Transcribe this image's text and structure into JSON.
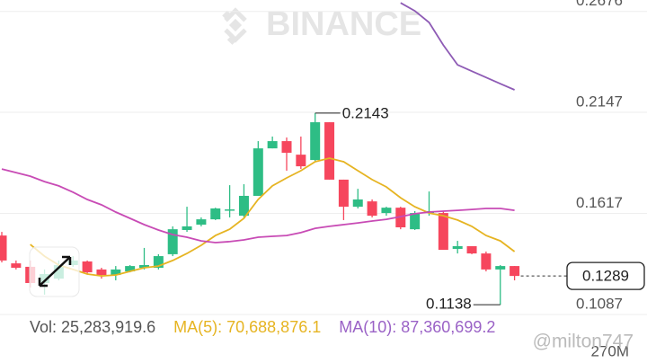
{
  "chart_data": {
    "type": "candlestick",
    "watermark": "BINANCE",
    "credit": "@milton747",
    "ylim": [
      0.1087,
      0.2736
    ],
    "yticks": [
      0.2676,
      0.2147,
      0.1617,
      0.1087
    ],
    "grid": true,
    "up_color": "#2ebd85",
    "down_color": "#f6465d",
    "open": [
      0.1501,
      0.1355,
      0.1337,
      0.1252,
      0.1275,
      0.1346,
      0.1365,
      0.1323,
      0.1294,
      0.1313,
      0.1332,
      0.1332,
      0.1403,
      0.153,
      0.1558,
      0.1586,
      0.1633,
      0.1605,
      0.1709,
      0.1958,
      0.1996,
      0.1925,
      0.1897,
      0.2095,
      0.1794,
      0.1652,
      0.168,
      0.1619,
      0.1647,
      0.1534,
      0.1619,
      0.1619,
      0.1431,
      0.1445,
      0.1407,
      0.1323,
      0.1341
    ],
    "high": [
      0.152,
      0.137,
      0.137,
      0.1323,
      0.137,
      0.1393,
      0.137,
      0.1332,
      0.1341,
      0.1346,
      0.1436,
      0.1403,
      0.1549,
      0.1652,
      0.1596,
      0.1647,
      0.1765,
      0.177,
      0.1996,
      0.202,
      0.2015,
      0.202,
      0.2143,
      0.2095,
      0.1794,
      0.1746,
      0.169,
      0.1652,
      0.1652,
      0.1629,
      0.1732,
      0.1629,
      0.1473,
      0.1445,
      0.1417,
      0.1346,
      0.1341
    ],
    "low": [
      0.136,
      0.1323,
      0.1228,
      0.1191,
      0.1266,
      0.1337,
      0.1299,
      0.1275,
      0.1266,
      0.1308,
      0.1323,
      0.1323,
      0.1393,
      0.152,
      0.1549,
      0.1582,
      0.1596,
      0.1596,
      0.1709,
      0.1958,
      0.1841,
      0.185,
      0.1888,
      0.1794,
      0.1582,
      0.1643,
      0.1596,
      0.1605,
      0.1534,
      0.153,
      0.1605,
      0.1426,
      0.1407,
      0.1403,
      0.1313,
      0.1138,
      0.1266
    ],
    "close": [
      0.137,
      0.1332,
      0.1252,
      0.1299,
      0.1346,
      0.137,
      0.1308,
      0.1294,
      0.1323,
      0.1341,
      0.1346,
      0.1393,
      0.1534,
      0.1549,
      0.1586,
      0.1643,
      0.1638,
      0.1709,
      0.1958,
      0.1996,
      0.1935,
      0.1864,
      0.2095,
      0.1794,
      0.1652,
      0.169,
      0.1605,
      0.1647,
      0.1544,
      0.1619,
      0.1629,
      0.1426,
      0.1445,
      0.1407,
      0.1323,
      0.1341,
      0.1289
    ],
    "series": [
      {
        "color": "#e6b422",
        "values": [
          null,
          null,
          0.1454,
          0.1393,
          0.1346,
          0.1323,
          0.1299,
          0.1289,
          0.1294,
          0.1313,
          0.1332,
          0.1341,
          0.137,
          0.1407,
          0.145,
          0.1501,
          0.1534,
          0.1591,
          0.169,
          0.1761,
          0.1803,
          0.1841,
          0.1888,
          0.1907,
          0.1888,
          0.1841,
          0.1794,
          0.1756,
          0.1699,
          0.1652,
          0.1619,
          0.1605,
          0.1582,
          0.1549,
          0.1501,
          0.1473,
          0.1417
        ]
      },
      {
        "color": "#c84bb5",
        "values": [
          0.185,
          0.1831,
          0.1812,
          0.1784,
          0.1761,
          0.1728,
          0.169,
          0.1662,
          0.1624,
          0.1591,
          0.1558,
          0.153,
          0.1506,
          0.1492,
          0.1473,
          0.1464,
          0.1469,
          0.1478,
          0.1492,
          0.1497,
          0.1501,
          0.1516,
          0.1539,
          0.1549,
          0.1558,
          0.1567,
          0.1577,
          0.1586,
          0.16,
          0.1615,
          0.1624,
          0.1629,
          0.1633,
          0.1638,
          0.1643,
          0.1643,
          0.1633
        ]
      },
      {
        "color": "#8e5bb5",
        "values": [
          null,
          null,
          null,
          null,
          null,
          null,
          null,
          null,
          null,
          null,
          null,
          null,
          null,
          null,
          null,
          null,
          null,
          null,
          null,
          null,
          null,
          null,
          null,
          null,
          null,
          null,
          null,
          null,
          0.2721,
          0.2679,
          0.2618,
          0.25,
          0.2396,
          0.2363,
          0.233,
          0.2297,
          0.2265
        ]
      }
    ],
    "volume_legend": [
      {
        "text": "Vol: 25,283,919.6",
        "color": "#555555"
      },
      {
        "text": "MA(5): 70,688,876.1",
        "color": "#e6b422"
      },
      {
        "text": "MA(10): 87,360,699.2",
        "color": "#9a62c6"
      }
    ],
    "volume_axis_label": "270M"
  }
}
